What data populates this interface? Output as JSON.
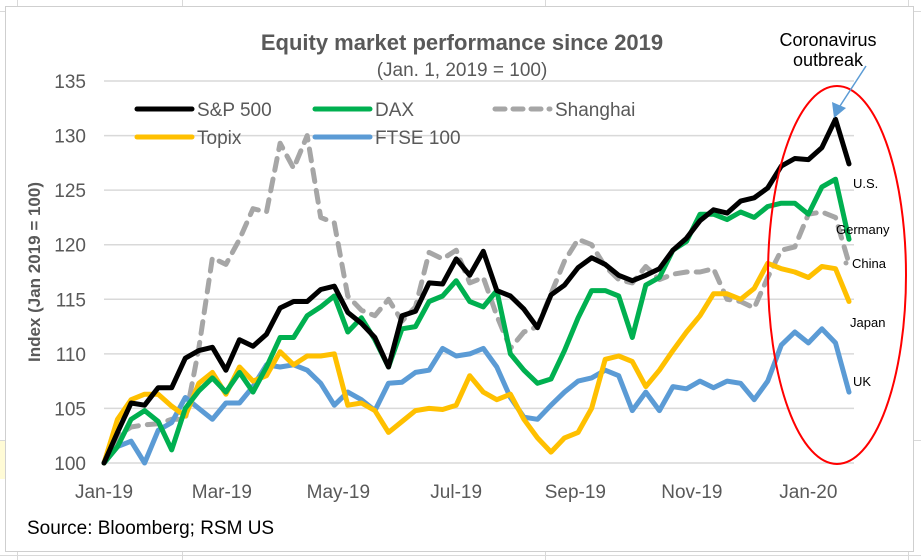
{
  "chart_data": {
    "type": "line",
    "title": "Equity market performance since 2019",
    "subtitle": "(Jan. 1, 2019 = 100)",
    "xlabel": "",
    "ylabel": "Index (Jan 2019 = 100)",
    "ylim": [
      100,
      135
    ],
    "yticks": [
      100,
      105,
      110,
      115,
      120,
      125,
      130,
      135
    ],
    "ytick_labels": [
      "100",
      "105",
      "110",
      "115",
      "120",
      "125",
      "130",
      "135"
    ],
    "xtick_labels": [
      "Jan-19",
      "Mar-19",
      "May-19",
      "Jul-19",
      "Sep-19",
      "Nov-19",
      "Jan-20"
    ],
    "xtick_weeks": [
      0,
      8.7,
      17.3,
      26,
      34.8,
      43.4,
      52
    ],
    "n_points": 56,
    "frequency": "weekly",
    "grid": true,
    "legend_position": "top",
    "series": [
      {
        "name": "S&P 500",
        "color": "#000000",
        "dashed": false,
        "end_label": "U.S.",
        "values": [
          100,
          102.8,
          105.5,
          105.3,
          106.9,
          106.9,
          109.6,
          110.3,
          110.6,
          108.5,
          111.3,
          110.7,
          111.8,
          114.2,
          114.8,
          114.8,
          115.9,
          116.2,
          113.8,
          112.8,
          111.5,
          108.8,
          113.5,
          113.9,
          116.5,
          116.4,
          118.7,
          117.2,
          119.4,
          115.8,
          115.3,
          114.1,
          112.4,
          115.4,
          116.3,
          117.9,
          118.8,
          118.2,
          117.2,
          116.7,
          117.2,
          117.8,
          119.5,
          120.6,
          122.2,
          123.2,
          122.9,
          124.0,
          124.3,
          125.2,
          127.2,
          127.9,
          127.8,
          128.9,
          131.5,
          127.4
        ]
      },
      {
        "name": "DAX",
        "color": "#00b050",
        "dashed": false,
        "end_label": "Germany",
        "values": [
          100,
          101.5,
          104.0,
          104.8,
          103.8,
          101.2,
          105.0,
          106.6,
          107.8,
          106.5,
          108.3,
          106.5,
          108.8,
          111.5,
          111.5,
          113.5,
          114.3,
          115.3,
          112.0,
          113.3,
          111.3,
          108.8,
          112.3,
          112.5,
          114.8,
          115.3,
          116.7,
          114.8,
          114.3,
          115.8,
          110.0,
          108.5,
          107.3,
          107.7,
          110.3,
          113.3,
          115.8,
          115.8,
          115.3,
          111.5,
          116.3,
          117.0,
          119.5,
          120.3,
          122.8,
          122.8,
          122.3,
          123.0,
          122.5,
          123.5,
          123.8,
          123.8,
          122.8,
          125.3,
          126.0,
          120.5
        ]
      },
      {
        "name": "Shanghai",
        "color": "#a6a6a6",
        "dashed": true,
        "end_label": "China",
        "values": [
          100,
          102.5,
          103.3,
          103.5,
          103.6,
          104.0,
          104.0,
          110.5,
          118.8,
          118.2,
          120.5,
          123.3,
          123.0,
          129.3,
          127.0,
          130.0,
          122.5,
          122.0,
          115.3,
          114.0,
          113.5,
          115.0,
          113.0,
          114.3,
          119.3,
          118.7,
          119.5,
          116.5,
          117.0,
          113.5,
          110.5,
          112.0,
          112.5,
          115.5,
          118.5,
          120.5,
          120.0,
          118.0,
          116.8,
          116.5,
          118.0,
          116.8,
          117.3,
          117.5,
          117.5,
          117.8,
          115.0,
          114.8,
          114.2,
          117.0,
          119.5,
          119.8,
          122.8,
          123.0,
          122.5,
          118.3
        ]
      },
      {
        "name": "Topix",
        "color": "#ffc000",
        "dashed": false,
        "end_label": "Japan",
        "values": [
          100,
          104.0,
          105.8,
          106.3,
          106.3,
          105.2,
          104.3,
          107.3,
          108.3,
          106.3,
          108.8,
          107.5,
          108.0,
          110.2,
          109.0,
          109.8,
          109.8,
          110.0,
          105.3,
          105.5,
          104.8,
          102.8,
          103.8,
          104.8,
          105.0,
          104.9,
          105.3,
          108.0,
          106.5,
          105.8,
          106.3,
          104.0,
          102.3,
          101.0,
          102.3,
          102.8,
          105.0,
          109.5,
          109.8,
          109.3,
          107.0,
          108.5,
          110.3,
          112.0,
          113.5,
          115.5,
          115.5,
          115.0,
          116.0,
          118.3,
          117.8,
          117.5,
          117.0,
          118.0,
          117.8,
          114.8
        ]
      },
      {
        "name": "FTSE 100",
        "color": "#5b9bd5",
        "dashed": false,
        "end_label": "UK",
        "values": [
          100,
          101.5,
          102.0,
          100.0,
          103.0,
          103.7,
          106.0,
          105.0,
          104.0,
          105.5,
          105.5,
          107.0,
          109.0,
          108.8,
          109.0,
          108.5,
          107.3,
          105.3,
          106.5,
          105.8,
          104.8,
          107.3,
          107.4,
          108.3,
          108.5,
          110.5,
          109.8,
          110.0,
          110.5,
          108.8,
          106.0,
          104.2,
          104.0,
          105.3,
          106.5,
          107.5,
          107.8,
          108.5,
          108.0,
          104.8,
          106.5,
          104.8,
          107.0,
          106.8,
          107.5,
          106.9,
          107.5,
          107.3,
          105.8,
          107.5,
          110.8,
          112.0,
          111.0,
          112.3,
          111.0,
          106.5
        ]
      }
    ],
    "annotations": [
      {
        "text_lines": [
          "Coronavirus",
          "outbreak"
        ],
        "type": "arrow-callout",
        "target": "peak"
      },
      {
        "type": "ellipse",
        "color": "#ff0000",
        "around": "last ~8 weeks"
      }
    ],
    "source": "Source: Bloomberg; RSM US"
  }
}
